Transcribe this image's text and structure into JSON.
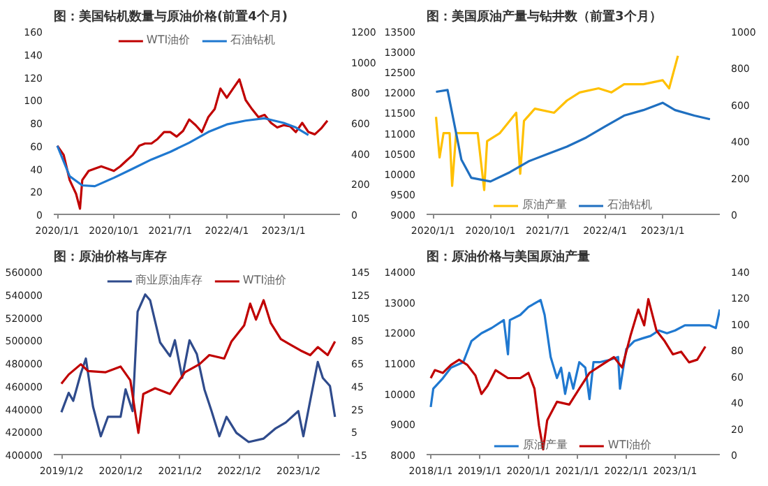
{
  "chart_data": [
    {
      "type": "line",
      "title": "图：美国钻机数量与原油价格(前置4个月)",
      "legend": "top",
      "grid": false,
      "marker": "none",
      "ylim": [
        0,
        160
      ],
      "yticks": [
        0,
        20,
        40,
        60,
        80,
        100,
        120,
        140,
        160
      ],
      "y2lim": [
        0,
        1200
      ],
      "y2ticks": [
        0,
        200,
        400,
        600,
        800,
        1000,
        1200
      ],
      "xlim": [
        "2019-12-15",
        "2023-10-01"
      ],
      "xticks": [
        {
          "value": "2020-01-01",
          "label": "2020/1/1"
        },
        {
          "value": "2020-10-01",
          "label": "2020/10/1"
        },
        {
          "value": "2021-07-01",
          "label": "2021/7/1"
        },
        {
          "value": "2022-04-01",
          "label": "2022/4/1"
        },
        {
          "value": "2023-01-01",
          "label": "2023/1/1"
        }
      ],
      "series": [
        {
          "name": "WTI油价",
          "color": "#c00000",
          "x": [
            "2020-01-01",
            "2020-02-01",
            "2020-03-01",
            "2020-04-01",
            "2020-04-20",
            "2020-05-01",
            "2020-06-01",
            "2020-07-01",
            "2020-08-01",
            "2020-09-01",
            "2020-10-01",
            "2020-11-01",
            "2020-12-01",
            "2021-01-01",
            "2021-02-01",
            "2021-03-01",
            "2021-04-01",
            "2021-05-01",
            "2021-06-01",
            "2021-07-01",
            "2021-08-01",
            "2021-09-01",
            "2021-10-01",
            "2021-11-01",
            "2021-12-01",
            "2022-01-01",
            "2022-02-01",
            "2022-03-01",
            "2022-04-01",
            "2022-05-01",
            "2022-06-01",
            "2022-07-01",
            "2022-08-01",
            "2022-09-01",
            "2022-10-01",
            "2022-11-01",
            "2022-12-01",
            "2023-01-01",
            "2023-02-01",
            "2023-03-01",
            "2023-04-01",
            "2023-05-01",
            "2023-06-01",
            "2023-07-01",
            "2023-08-01"
          ],
          "values": [
            60,
            52,
            30,
            18,
            5,
            30,
            38,
            40,
            42,
            40,
            38,
            42,
            47,
            52,
            60,
            62,
            62,
            66,
            72,
            72,
            68,
            73,
            83,
            78,
            72,
            85,
            92,
            110,
            102,
            110,
            118,
            100,
            92,
            85,
            87,
            80,
            76,
            78,
            77,
            72,
            80,
            72,
            70,
            75,
            82
          ]
        },
        {
          "name": "石油钻机",
          "color": "#1f78d0",
          "axis": "y2",
          "x": [
            "2020-01-01",
            "2020-03-01",
            "2020-05-01",
            "2020-07-01",
            "2020-10-01",
            "2021-01-01",
            "2021-04-01",
            "2021-07-01",
            "2021-10-01",
            "2022-01-01",
            "2022-04-01",
            "2022-07-01",
            "2022-10-01",
            "2023-01-01",
            "2023-03-01",
            "2023-05-01"
          ],
          "values": [
            450,
            250,
            190,
            185,
            240,
            300,
            360,
            410,
            470,
            540,
            590,
            615,
            630,
            600,
            570,
            520
          ]
        }
      ]
    },
    {
      "type": "line",
      "title": "图：美国原油产量与钻井数（前置3个月）",
      "legend": "bottom",
      "grid": false,
      "marker": "none",
      "ylim": [
        9000,
        13500
      ],
      "yticks": [
        9000,
        9500,
        10000,
        10500,
        11000,
        11500,
        12000,
        12500,
        13000,
        13500
      ],
      "y2lim": [
        0,
        1000
      ],
      "y2ticks": [
        0,
        200,
        400,
        600,
        800,
        1000
      ],
      "xlim": [
        "2019-12-01",
        "2023-10-01"
      ],
      "xticks": [
        {
          "value": "2020-01-01",
          "label": "2020/1/1"
        },
        {
          "value": "2020-10-01",
          "label": "2020/10/1"
        },
        {
          "value": "2021-07-01",
          "label": "2021/7/1"
        },
        {
          "value": "2022-04-01",
          "label": "2022/4/1"
        },
        {
          "value": "2023-01-01",
          "label": "2023/1/1"
        }
      ],
      "series": [
        {
          "name": "原油产量",
          "color": "#ffc000",
          "x": [
            "2020-01-15",
            "2020-02-01",
            "2020-02-20",
            "2020-03-20",
            "2020-04-01",
            "2020-04-20",
            "2020-06-01",
            "2020-08-01",
            "2020-09-01",
            "2020-09-15",
            "2020-11-15",
            "2021-02-01",
            "2021-02-20",
            "2021-03-10",
            "2021-05-01",
            "2021-08-01",
            "2021-10-01",
            "2021-12-01",
            "2022-03-01",
            "2022-05-01",
            "2022-07-01",
            "2022-10-01",
            "2023-01-01",
            "2023-02-01",
            "2023-03-15"
          ],
          "values": [
            11400,
            10400,
            11000,
            11000,
            9700,
            11000,
            11000,
            11000,
            9600,
            10800,
            11000,
            11500,
            10000,
            11300,
            11600,
            11500,
            11800,
            12000,
            12100,
            12000,
            12200,
            12200,
            12300,
            12100,
            12900
          ]
        },
        {
          "name": "石油钻机",
          "color": "#1f6fc0",
          "axis": "y2",
          "x": [
            "2020-01-15",
            "2020-03-10",
            "2020-05-15",
            "2020-07-01",
            "2020-10-01",
            "2021-01-01",
            "2021-04-01",
            "2021-07-01",
            "2021-10-01",
            "2022-01-01",
            "2022-04-01",
            "2022-07-01",
            "2022-10-01",
            "2023-01-01",
            "2023-03-01",
            "2023-06-01",
            "2023-08-15"
          ],
          "values": [
            670,
            680,
            300,
            200,
            180,
            230,
            290,
            330,
            370,
            420,
            480,
            540,
            570,
            610,
            570,
            540,
            520
          ]
        }
      ]
    },
    {
      "type": "line",
      "title": "图：原油价格与库存",
      "legend": "top",
      "grid": false,
      "marker": "none",
      "ylim": [
        400000,
        560000
      ],
      "yticks": [
        400000,
        420000,
        440000,
        460000,
        480000,
        500000,
        520000,
        540000,
        560000
      ],
      "y2lim": [
        -15,
        145
      ],
      "y2ticks": [
        -15,
        5,
        25,
        45,
        65,
        85,
        105,
        125,
        145
      ],
      "xlim": [
        "2018-11-15",
        "2023-09-15"
      ],
      "xticks": [
        {
          "value": "2019-01-02",
          "label": "2019/1/2"
        },
        {
          "value": "2020-01-02",
          "label": "2020/1/2"
        },
        {
          "value": "2021-01-02",
          "label": "2021/1/2"
        },
        {
          "value": "2022-01-02",
          "label": "2022/1/2"
        },
        {
          "value": "2023-01-02",
          "label": "2023/1/2"
        }
      ],
      "series": [
        {
          "name": "商业原油库存",
          "color": "#2f4b8c",
          "x": [
            "2019-01-01",
            "2019-02-15",
            "2019-03-15",
            "2019-05-01",
            "2019-06-01",
            "2019-07-15",
            "2019-09-01",
            "2019-10-15",
            "2020-01-01",
            "2020-02-01",
            "2020-03-15",
            "2020-04-15",
            "2020-06-01",
            "2020-07-01",
            "2020-09-01",
            "2020-11-01",
            "2020-12-01",
            "2021-01-15",
            "2021-03-01",
            "2021-04-15",
            "2021-06-01",
            "2021-07-15",
            "2021-09-01",
            "2021-10-15",
            "2021-12-15",
            "2022-03-01",
            "2022-06-01",
            "2022-08-15",
            "2022-10-15",
            "2023-01-01",
            "2023-02-01",
            "2023-03-15",
            "2023-05-01",
            "2023-06-01",
            "2023-07-15",
            "2023-08-15"
          ],
          "values": [
            437000,
            454000,
            447000,
            471000,
            484000,
            442000,
            416000,
            433000,
            433000,
            457000,
            438000,
            525000,
            540000,
            535000,
            498000,
            486000,
            500000,
            467000,
            500000,
            488000,
            457000,
            438000,
            416000,
            433000,
            419000,
            411000,
            414000,
            423000,
            428000,
            438000,
            416000,
            447000,
            481000,
            467000,
            460000,
            433000
          ]
        },
        {
          "name": "WTI油价",
          "color": "#c00000",
          "axis": "y2",
          "x": [
            "2019-01-01",
            "2019-02-15",
            "2019-05-01",
            "2019-06-15",
            "2019-10-01",
            "2020-01-01",
            "2020-03-01",
            "2020-04-01",
            "2020-04-20",
            "2020-05-20",
            "2020-08-01",
            "2020-11-01",
            "2021-02-01",
            "2021-05-01",
            "2021-07-01",
            "2021-10-01",
            "2021-11-15",
            "2022-02-01",
            "2022-03-10",
            "2022-04-15",
            "2022-06-01",
            "2022-07-15",
            "2022-09-15",
            "2022-11-15",
            "2023-01-15",
            "2023-03-15",
            "2023-05-01",
            "2023-07-01",
            "2023-08-15"
          ],
          "values": [
            47,
            55,
            64,
            58,
            57,
            62,
            50,
            21,
            4,
            38,
            43,
            38,
            57,
            64,
            72,
            69,
            84,
            98,
            117,
            103,
            120,
            100,
            86,
            81,
            76,
            72,
            79,
            72,
            84
          ]
        }
      ]
    },
    {
      "type": "line",
      "title": "图：原油价格与美国原油产量",
      "legend": "bottom",
      "grid": false,
      "marker": "none",
      "ylim": [
        8000,
        14000
      ],
      "yticks": [
        8000,
        9000,
        10000,
        11000,
        12000,
        13000,
        14000
      ],
      "y2lim": [
        0,
        140
      ],
      "y2ticks": [
        0,
        20,
        40,
        60,
        80,
        100,
        120,
        140
      ],
      "xlim": [
        "2017-12-01",
        "2023-12-01"
      ],
      "xticks": [
        {
          "value": "2018-01-01",
          "label": "2018/1/1"
        },
        {
          "value": "2019-01-01",
          "label": "2019/1/1"
        },
        {
          "value": "2020-01-01",
          "label": "2020/1/1"
        },
        {
          "value": "2021-01-01",
          "label": "2021/1/1"
        },
        {
          "value": "2022-01-01",
          "label": "2022/1/1"
        },
        {
          "value": "2023-01-01",
          "label": "2023/1/1"
        }
      ],
      "series": [
        {
          "name": "原油产量",
          "color": "#1f78d0",
          "x": [
            "2018-01-01",
            "2018-01-20",
            "2018-04-01",
            "2018-06-01",
            "2018-09-01",
            "2018-11-01",
            "2019-01-15",
            "2019-04-01",
            "2019-07-01",
            "2019-08-01",
            "2019-08-15",
            "2019-11-01",
            "2020-01-01",
            "2020-04-01",
            "2020-05-01",
            "2020-06-15",
            "2020-08-01",
            "2020-09-01",
            "2020-10-01",
            "2020-11-01",
            "2020-12-01",
            "2021-01-15",
            "2021-03-01",
            "2021-04-01",
            "2021-05-01",
            "2021-06-15",
            "2021-09-01",
            "2021-11-01",
            "2021-11-15",
            "2022-01-01",
            "2022-03-01",
            "2022-05-01",
            "2022-07-01",
            "2022-09-01",
            "2022-11-01",
            "2023-01-01",
            "2023-03-15",
            "2023-06-15",
            "2023-09-15",
            "2023-11-01",
            "2023-12-01"
          ],
          "values": [
            9560,
            10160,
            10500,
            10850,
            11030,
            11720,
            11980,
            12150,
            12410,
            11290,
            12410,
            12580,
            12840,
            13070,
            12580,
            11200,
            10510,
            10850,
            9990,
            10680,
            10160,
            11030,
            10850,
            9820,
            11030,
            11030,
            11110,
            11200,
            10160,
            11460,
            11720,
            11810,
            11890,
            12070,
            11980,
            12070,
            12240,
            12240,
            12240,
            12150,
            12760
          ]
        },
        {
          "name": "WTI油价",
          "color": "#c00000",
          "axis": "y2",
          "x": [
            "2018-01-01",
            "2018-02-01",
            "2018-04-01",
            "2018-06-01",
            "2018-08-01",
            "2018-10-01",
            "2018-12-01",
            "2019-01-15",
            "2019-03-01",
            "2019-05-01",
            "2019-08-01",
            "2019-11-01",
            "2020-01-01",
            "2020-02-15",
            "2020-03-20",
            "2020-04-20",
            "2020-05-20",
            "2020-08-01",
            "2020-11-01",
            "2021-01-15",
            "2021-04-01",
            "2021-07-01",
            "2021-10-01",
            "2021-12-01",
            "2022-02-01",
            "2022-04-01",
            "2022-05-15",
            "2022-06-15",
            "2022-08-15",
            "2022-10-15",
            "2022-12-15",
            "2023-02-15",
            "2023-04-15",
            "2023-06-15",
            "2023-08-15"
          ],
          "values": [
            58.5,
            64.6,
            62.5,
            68.6,
            72.6,
            68.6,
            60.5,
            46.4,
            52.5,
            64.6,
            58.5,
            58.5,
            62.5,
            50.4,
            22.2,
            4,
            26.2,
            40.4,
            38.3,
            50.4,
            62.5,
            68.6,
            74.6,
            66.6,
            90.8,
            111,
            98.9,
            119,
            94.8,
            86.8,
            76.7,
            78.7,
            70.6,
            72.6,
            82.7
          ]
        }
      ]
    }
  ]
}
